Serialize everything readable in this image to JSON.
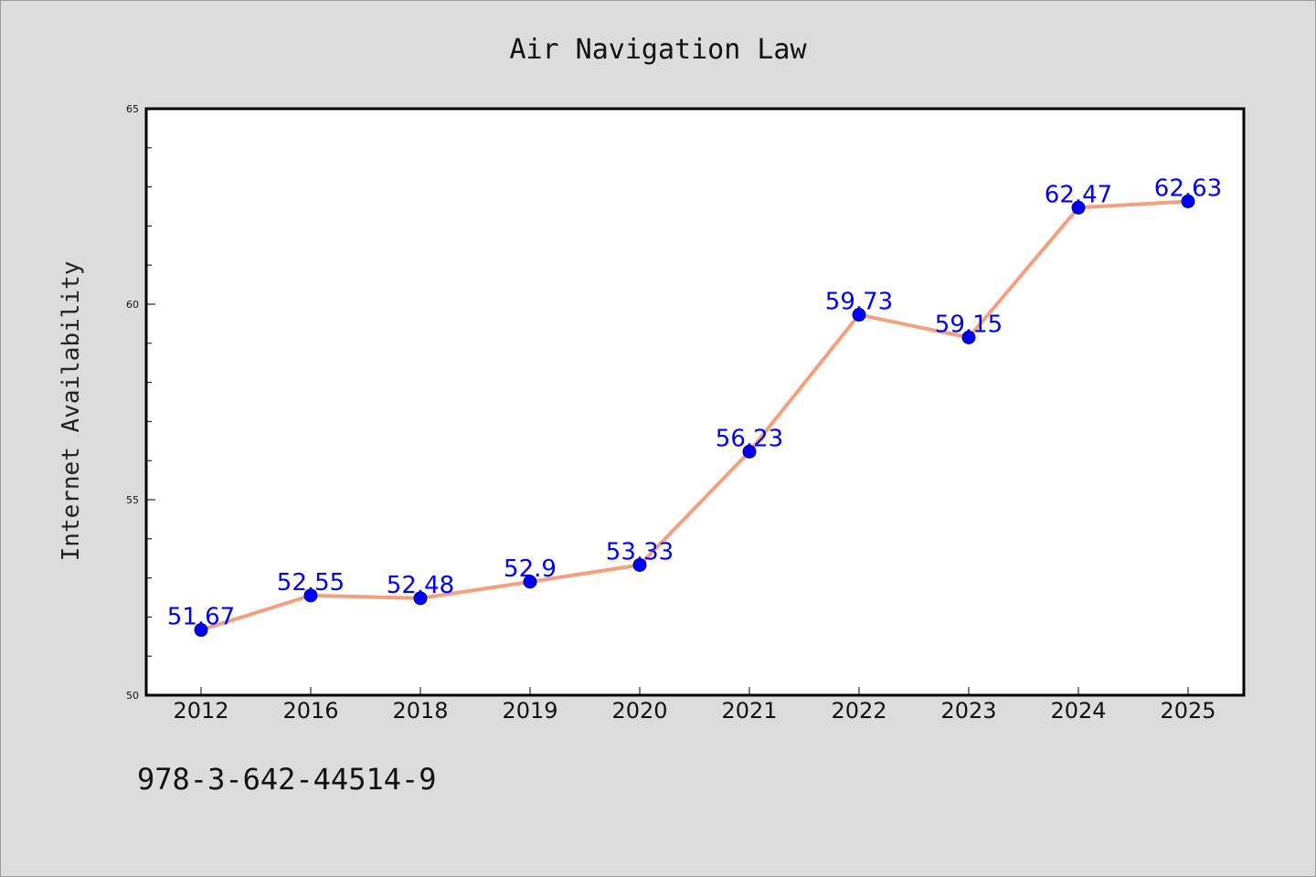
{
  "chart_data": {
    "type": "line",
    "title": "Air Navigation Law",
    "xlabel": "",
    "ylabel": "Internet Availability",
    "categories": [
      "2012",
      "2016",
      "2018",
      "2019",
      "2020",
      "2021",
      "2022",
      "2023",
      "2024",
      "2025"
    ],
    "series": [
      {
        "values": [
          51.67,
          52.55,
          52.48,
          52.9,
          53.33,
          56.23,
          59.73,
          59.15,
          62.47,
          62.63
        ],
        "line_color": "#f4a07e",
        "marker_color": "#0000ff"
      }
    ],
    "data_labels": [
      "51.67",
      "52.55",
      "52.48",
      "52.9",
      "53.33",
      "56.23",
      "59.73",
      "59.15",
      "62.47",
      "62.63"
    ],
    "ylim": [
      50,
      65
    ],
    "y_ticks": [
      "50",
      "55",
      "60",
      "65"
    ],
    "grid": false,
    "label_color": "#0000ff"
  },
  "footer": {
    "isbn": "978-3-642-44514-9"
  },
  "colors": {
    "background": "#dcdcdc",
    "plot_background": "#ffffff"
  }
}
